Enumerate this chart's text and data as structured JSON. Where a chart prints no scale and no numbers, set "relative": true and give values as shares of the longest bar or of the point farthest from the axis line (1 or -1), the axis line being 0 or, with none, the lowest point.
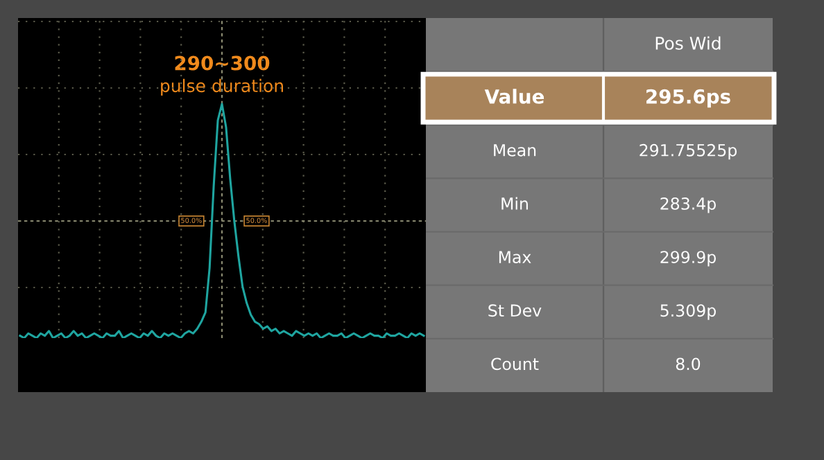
{
  "chart_data": [
    {
      "type": "line",
      "relative": true,
      "grid": true,
      "categories": [
        null,
        null,
        null,
        null,
        null,
        null,
        null,
        null,
        null,
        null,
        null,
        null,
        null,
        null,
        null,
        null,
        null,
        null,
        null,
        null,
        null,
        null,
        null,
        null,
        null,
        null,
        null,
        null,
        null,
        null,
        null,
        null,
        null,
        null,
        null,
        null,
        null,
        null,
        null,
        null,
        null,
        null,
        null,
        null,
        null,
        null,
        null,
        null,
        null,
        null,
        null,
        null,
        null,
        null,
        null,
        null,
        null,
        null,
        null,
        null,
        null,
        null,
        null,
        null,
        null,
        null,
        null,
        null,
        null,
        null,
        null,
        null,
        null,
        null,
        null,
        null,
        null,
        null,
        null,
        null,
        null,
        null,
        null,
        null,
        null,
        null,
        null,
        null,
        null,
        null,
        null,
        null,
        null,
        null,
        null,
        null,
        null,
        null,
        null
      ],
      "series": [
        {
          "color": "#1fa5a0",
          "values": [
            0.01,
            0.0,
            0.02,
            0.01,
            0.0,
            0.02,
            0.01,
            0.03,
            0.0,
            0.01,
            0.02,
            0.0,
            0.01,
            0.03,
            0.01,
            0.02,
            0.0,
            0.01,
            0.02,
            0.01,
            0.0,
            0.02,
            0.01,
            0.01,
            0.03,
            0.0,
            0.01,
            0.02,
            0.01,
            0.0,
            0.02,
            0.01,
            0.03,
            0.01,
            0.0,
            0.02,
            0.01,
            0.02,
            0.01,
            0.0,
            0.02,
            0.03,
            0.02,
            0.04,
            0.07,
            0.11,
            0.3,
            0.65,
            0.93,
            1.0,
            0.9,
            0.68,
            0.5,
            0.35,
            0.22,
            0.15,
            0.1,
            0.07,
            0.06,
            0.04,
            0.05,
            0.03,
            0.04,
            0.02,
            0.03,
            0.02,
            0.01,
            0.03,
            0.02,
            0.01,
            0.02,
            0.01,
            0.02,
            0.0,
            0.01,
            0.02,
            0.01,
            0.01,
            0.02,
            0.0,
            0.01,
            0.02,
            0.01,
            0.0,
            0.01,
            0.02,
            0.01,
            0.01,
            0.0,
            0.02,
            0.01,
            0.01,
            0.02,
            0.01,
            0.0,
            0.02,
            0.01,
            0.02,
            0.01
          ]
        }
      ],
      "ref_lines": [
        {
          "axis": "y",
          "value": 0.5,
          "color": "#8a8a70",
          "line_style": "dashed"
        }
      ],
      "annotations": [
        "290~300",
        "pulse duration",
        "50.0%",
        "50.0%"
      ]
    },
    {
      "type": "other",
      "annotations": [
        "Pos Wid",
        "Value",
        "295.6ps",
        "Mean",
        "291.75525p",
        "Min",
        "283.4p",
        "Max",
        "299.9p",
        "St Dev",
        "5.309p",
        "Count",
        "8.0"
      ]
    }
  ]
}
